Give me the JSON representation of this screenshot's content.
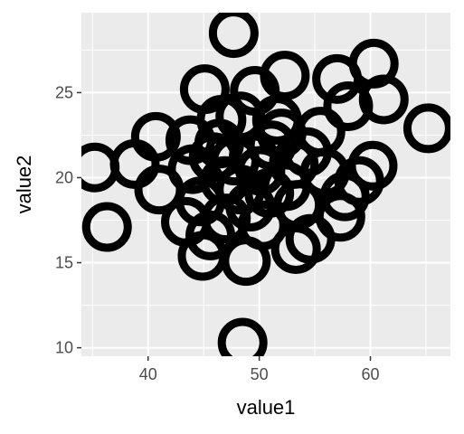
{
  "chart_data": {
    "type": "scatter",
    "title": "",
    "xlabel": "value1",
    "ylabel": "value2",
    "xlim": [
      34,
      67.2
    ],
    "ylim": [
      9.5,
      29.7
    ],
    "x_ticks": [
      40,
      50,
      60
    ],
    "y_ticks": [
      10,
      15,
      20,
      25
    ],
    "x_tick_labels": [
      "40",
      "50",
      "60"
    ],
    "y_tick_labels": [
      "10",
      "15",
      "20",
      "25"
    ],
    "grid": true,
    "marker": "open-circle",
    "series": [
      {
        "points": [
          [
            47.7,
            28.5
          ],
          [
            60.3,
            26.7
          ],
          [
            57.0,
            25.8
          ],
          [
            52.3,
            26.0
          ],
          [
            49.6,
            25.1
          ],
          [
            45.1,
            25.2
          ],
          [
            61.2,
            24.6
          ],
          [
            58.0,
            24.2
          ],
          [
            65.2,
            22.9
          ],
          [
            40.7,
            22.4
          ],
          [
            43.8,
            22.2
          ],
          [
            38.8,
            20.8
          ],
          [
            35.2,
            20.6
          ],
          [
            41.0,
            19.3
          ],
          [
            36.3,
            17.1
          ],
          [
            45.6,
            16.6
          ],
          [
            44.9,
            15.4
          ],
          [
            48.8,
            15.1
          ],
          [
            54.6,
            16.4
          ],
          [
            53.3,
            15.8
          ],
          [
            57.3,
            17.7
          ],
          [
            60.2,
            20.7
          ],
          [
            59.0,
            19.8
          ],
          [
            57.7,
            18.9
          ],
          [
            53.5,
            18.4
          ],
          [
            55.5,
            22.7
          ],
          [
            51.6,
            23.4
          ],
          [
            48.3,
            23.6
          ],
          [
            46.4,
            22.0
          ],
          [
            44.0,
            20.5
          ],
          [
            44.7,
            18.6
          ],
          [
            47.0,
            17.6
          ],
          [
            50.3,
            17.2
          ],
          [
            52.4,
            19.5
          ],
          [
            55.9,
            20.3
          ],
          [
            49.5,
            21.2
          ],
          [
            46.9,
            19.8
          ],
          [
            51.1,
            21.9
          ],
          [
            48.3,
            19.3
          ],
          [
            50.9,
            19.1
          ],
          [
            53.1,
            20.8
          ],
          [
            45.9,
            21.2
          ],
          [
            47.8,
            21.0
          ],
          [
            50.1,
            20.4
          ],
          [
            49.2,
            18.3
          ],
          [
            52.0,
            22.6
          ],
          [
            46.6,
            23.4
          ],
          [
            54.3,
            21.5
          ],
          [
            43.4,
            17.4
          ],
          [
            48.5,
            10.3
          ]
        ]
      }
    ]
  }
}
